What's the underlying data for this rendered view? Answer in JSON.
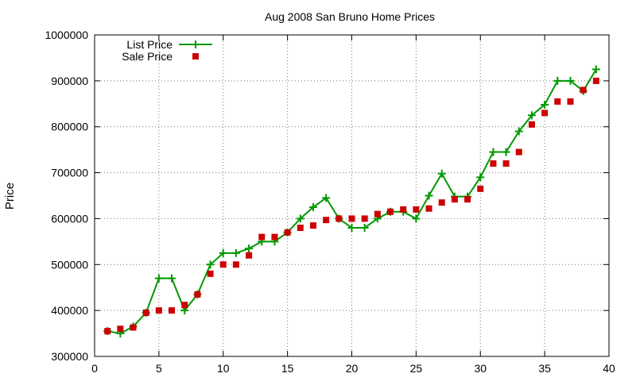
{
  "chart_data": {
    "type": "line",
    "title": "Aug 2008 San Bruno Home Prices",
    "xlabel": "",
    "ylabel": "Price",
    "xlim": [
      0,
      40
    ],
    "ylim": [
      300000,
      1000000
    ],
    "xticks": [
      0,
      5,
      10,
      15,
      20,
      25,
      30,
      35,
      40
    ],
    "yticks": [
      300000,
      400000,
      500000,
      600000,
      700000,
      800000,
      900000,
      1000000
    ],
    "grid": true,
    "legend_position": "top-left",
    "series": [
      {
        "name": "List Price",
        "style": "line-plus",
        "color": "#009900",
        "x": [
          1,
          2,
          3,
          4,
          5,
          6,
          7,
          8,
          9,
          10,
          11,
          12,
          13,
          14,
          15,
          16,
          17,
          18,
          19,
          20,
          21,
          22,
          23,
          24,
          25,
          26,
          27,
          28,
          29,
          30,
          31,
          32,
          33,
          34,
          35,
          36,
          37,
          38,
          39
        ],
        "y": [
          355000,
          350000,
          365000,
          395000,
          470000,
          470000,
          400000,
          435000,
          500000,
          525000,
          525000,
          535000,
          550000,
          550000,
          570000,
          600000,
          625000,
          645000,
          600000,
          580000,
          580000,
          600000,
          615000,
          615000,
          600000,
          650000,
          698000,
          648000,
          648000,
          690000,
          745000,
          745000,
          790000,
          825000,
          848000,
          900000,
          900000,
          878000,
          925000
        ]
      },
      {
        "name": "Sale Price",
        "style": "square",
        "color": "#cc0000",
        "x": [
          1,
          2,
          3,
          4,
          5,
          6,
          7,
          8,
          9,
          10,
          11,
          12,
          13,
          14,
          15,
          16,
          17,
          18,
          19,
          20,
          21,
          22,
          23,
          24,
          25,
          26,
          27,
          28,
          29,
          30,
          31,
          32,
          33,
          34,
          35,
          36,
          37,
          38,
          39
        ],
        "y": [
          355000,
          360000,
          363000,
          395000,
          400000,
          400000,
          412000,
          435000,
          480000,
          500000,
          500000,
          520000,
          560000,
          560000,
          570000,
          580000,
          585000,
          597000,
          600000,
          600000,
          600000,
          610000,
          615000,
          620000,
          620000,
          622000,
          635000,
          642000,
          642000,
          665000,
          720000,
          720000,
          745000,
          805000,
          830000,
          855000,
          855000,
          880000,
          900000
        ]
      }
    ]
  }
}
